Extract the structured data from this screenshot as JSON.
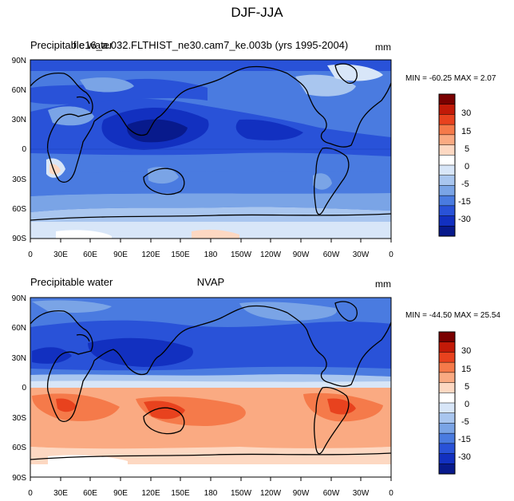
{
  "figure": {
    "title": "DJF-JJA"
  },
  "panels": [
    {
      "left_label": "Precipitable water",
      "center_label": "f.e16_a.032.FLTHIST_ne30.cam7_ke.003b (yrs 1995-2004)",
      "units": "mm",
      "minmax": "MIN = -60.25 MAX =   2.07",
      "lat_ticks": [
        "90N",
        "60N",
        "30N",
        "0",
        "30S",
        "60S",
        "90S"
      ],
      "lon_ticks": [
        "0",
        "30E",
        "60E",
        "90E",
        "120E",
        "150E",
        "180",
        "150W",
        "120W",
        "90W",
        "60W",
        "30W",
        "0"
      ]
    },
    {
      "left_label": "Precipitable water",
      "center_label": "NVAP",
      "units": "mm",
      "minmax": "MIN = -44.50 MAX =  25.54",
      "lat_ticks": [
        "90N",
        "60N",
        "30N",
        "0",
        "30S",
        "60S",
        "90S"
      ],
      "lon_ticks": [
        "0",
        "30E",
        "60E",
        "90E",
        "120E",
        "150E",
        "180",
        "150W",
        "120W",
        "90W",
        "60W",
        "30W",
        "0"
      ]
    }
  ],
  "colorbar": {
    "labels": [
      "30",
      "15",
      "5",
      "0",
      "-5",
      "-15",
      "-30"
    ],
    "colors": [
      "#7a0000",
      "#c21a08",
      "#e8421e",
      "#f57a4a",
      "#faaa82",
      "#fdd8c2",
      "#ffffff",
      "#d8e6f8",
      "#a9c6ef",
      "#7aa4e6",
      "#4a7be0",
      "#2952d8",
      "#1230c0",
      "#081a8c"
    ]
  }
}
